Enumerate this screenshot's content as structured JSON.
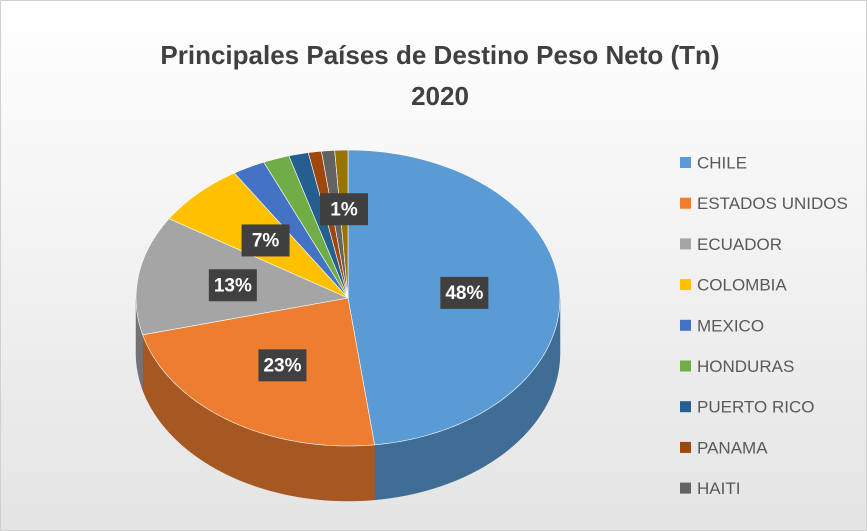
{
  "chart_data": {
    "type": "pie",
    "title": "Principales Países de Destino Peso Neto (Tn)",
    "subtitle": "2020",
    "categories": [
      "CHILE",
      "ESTADOS UNIDOS",
      "ECUADOR",
      "COLOMBIA",
      "MEXICO",
      "HONDURAS",
      "PUERTO RICO",
      "PANAMA",
      "HAITI",
      null
    ],
    "values": [
      48,
      23,
      13,
      7,
      2.5,
      2,
      1.5,
      1,
      1,
      1
    ],
    "value_labels": [
      "48%",
      "23%",
      "13%",
      "7%",
      null,
      null,
      null,
      null,
      null,
      "1%"
    ],
    "colors": [
      "#5b9bd5",
      "#ed7d31",
      "#a5a5a5",
      "#ffc000",
      "#4472c4",
      "#70ad47",
      "#255e91",
      "#9e480e",
      "#636363",
      "#997300"
    ],
    "legend": "right"
  }
}
